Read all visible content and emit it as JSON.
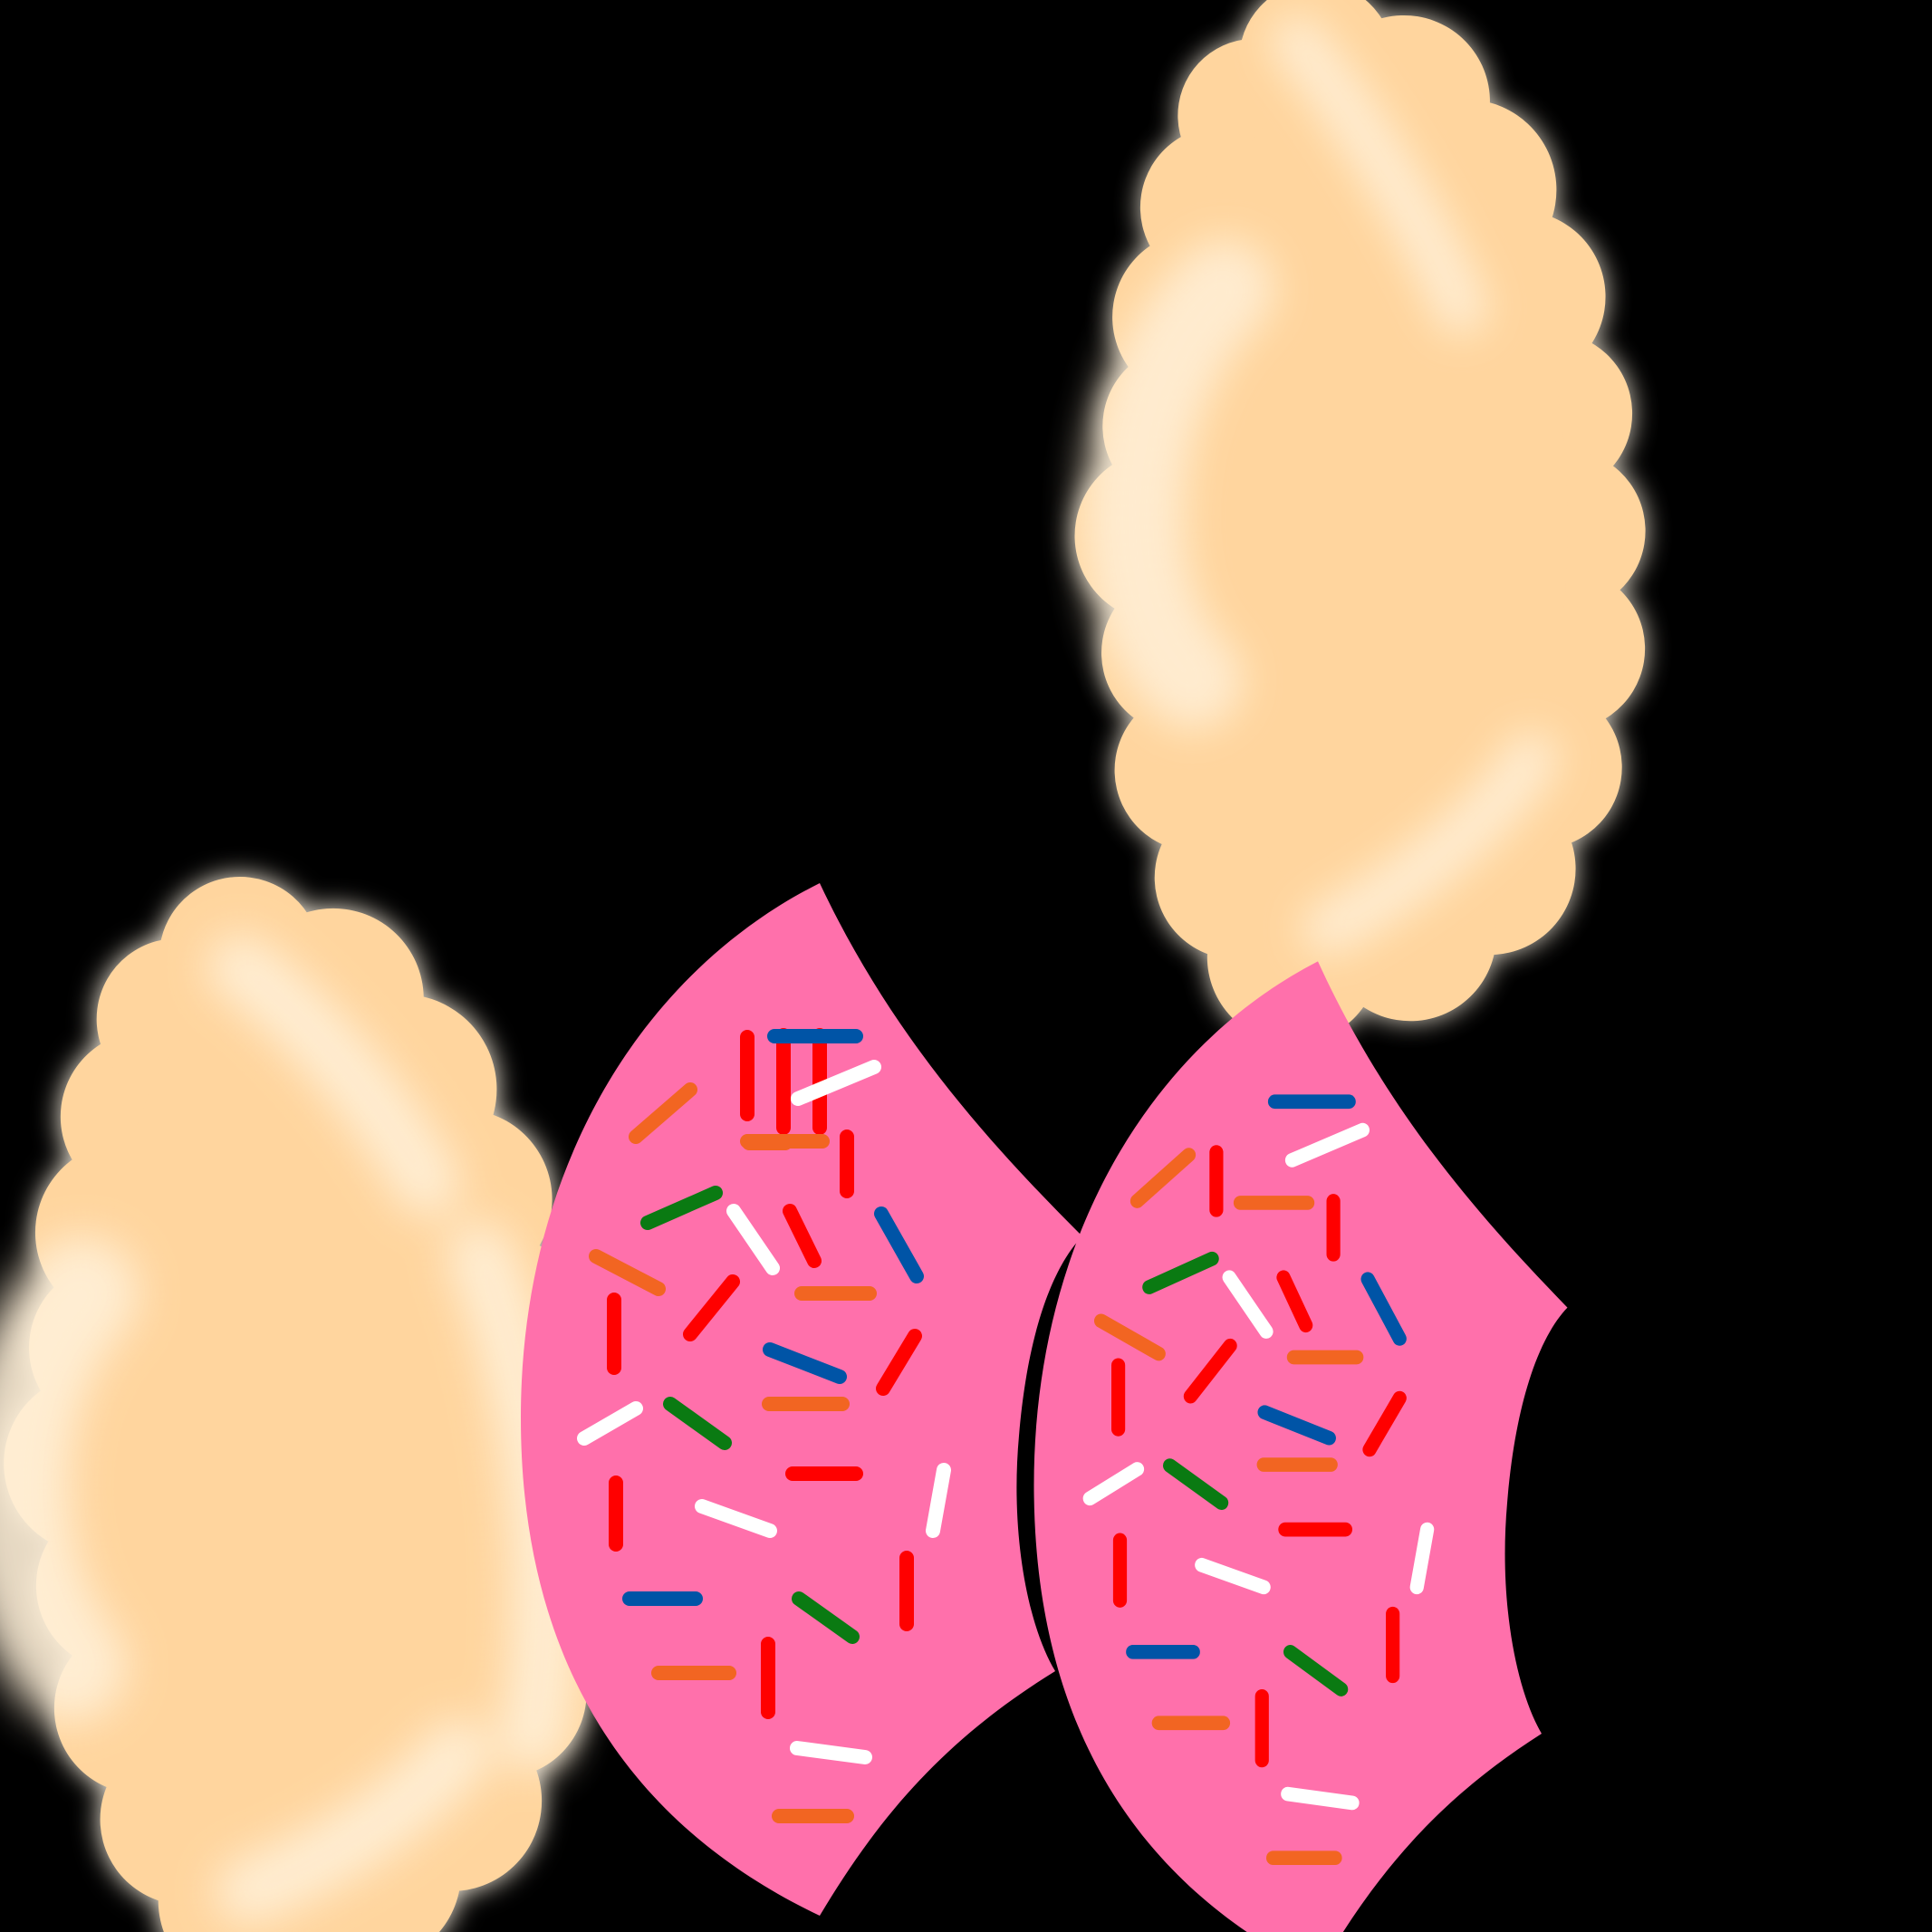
{
  "scene": {
    "background": "#000000",
    "pastry_fill": "#FFD59E",
    "pastry_highlight": "#FFF0D8",
    "pastry_glow": "#FFF6E6",
    "icing_fill": "#FF70AB",
    "sprinkle_colors": {
      "red": "#FF0000",
      "orange": "#F26522",
      "green": "#0A7A12",
      "blue": "#0054A6",
      "white": "#FFFFFF"
    }
  },
  "items": [
    {
      "name": "empanada-pastry",
      "kind": "pastry",
      "count": 2
    },
    {
      "name": "frosted-sprinkle-pastry",
      "kind": "frosted",
      "count": 2
    }
  ]
}
